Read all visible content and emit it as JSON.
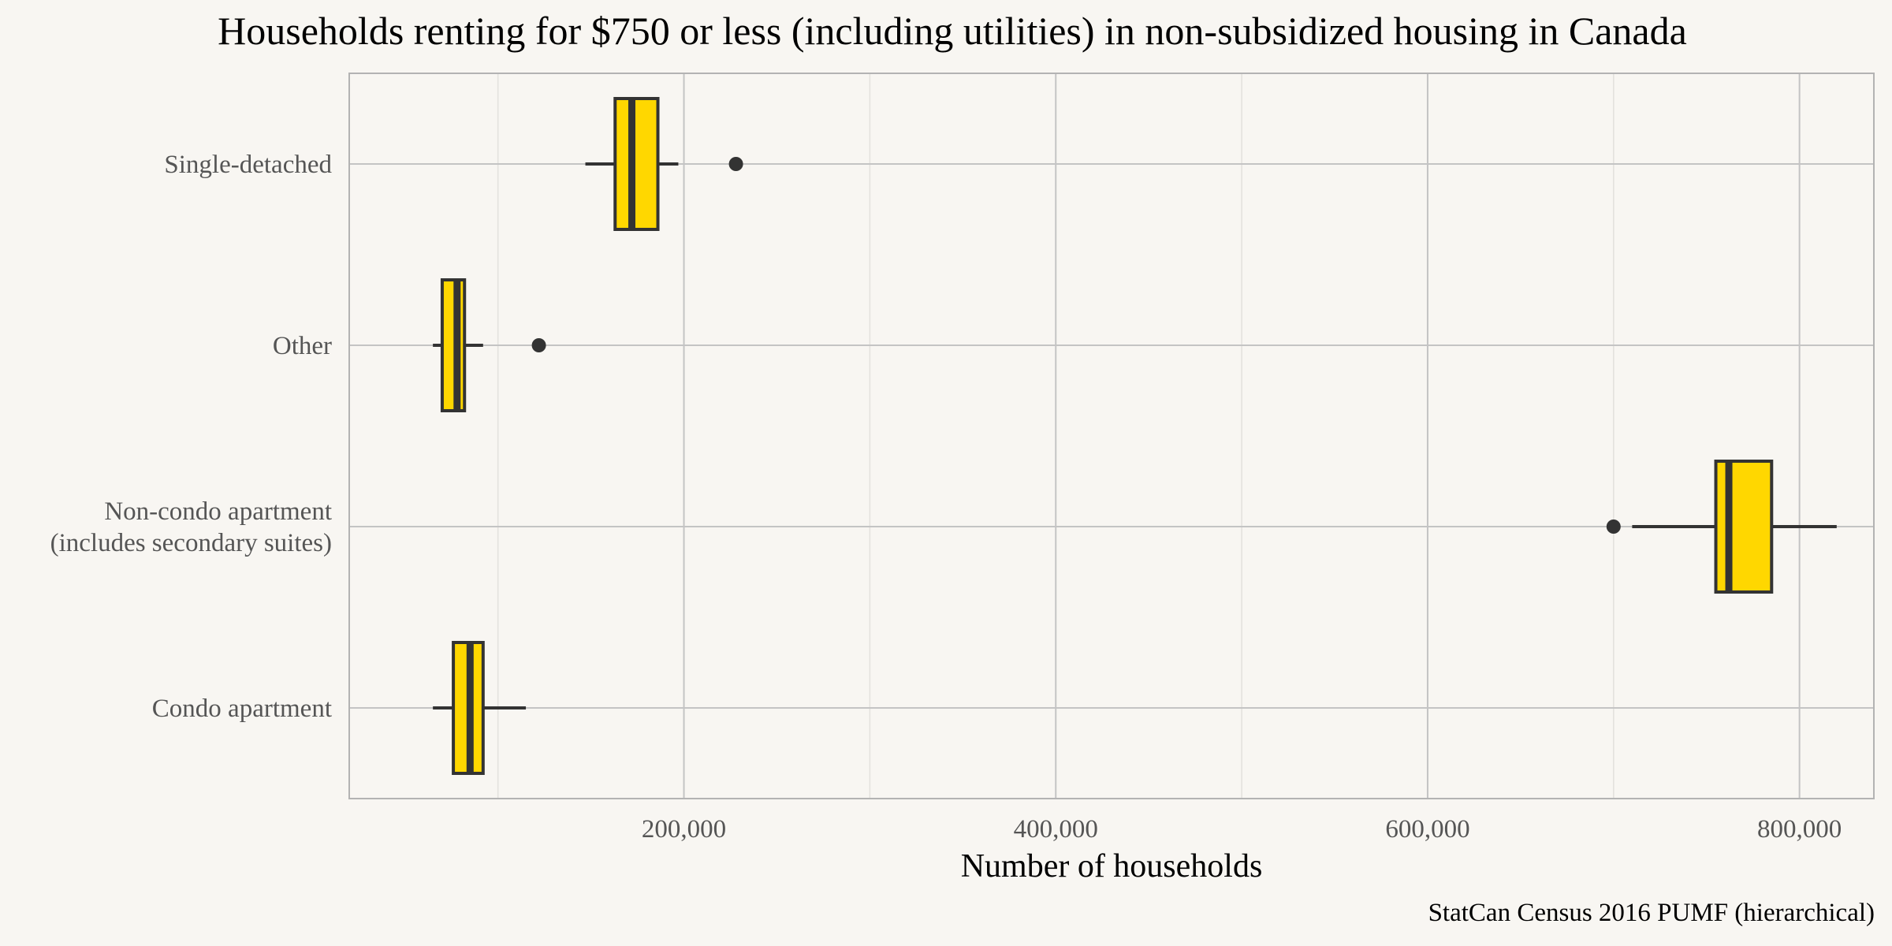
{
  "chart_data": {
    "type": "box",
    "orientation": "horizontal",
    "title": "Households renting for $750 or less (including utilities) in non-subsidized housing in Canada",
    "xlabel": "Number of households",
    "ylabel": "",
    "caption": "StatCan Census 2016 PUMF (hierarchical)",
    "xlim": [
      20000,
      840000
    ],
    "x_ticks": [
      200000,
      400000,
      600000,
      800000
    ],
    "x_tick_labels": [
      "200,000",
      "400,000",
      "600,000",
      "800,000"
    ],
    "grid": true,
    "fill_color": "#ffd700",
    "outline_color": "#333333",
    "categories": [
      {
        "label": [
          "Single-detached"
        ],
        "whisker_low": 147000,
        "q1": 163000,
        "median": 172000,
        "q3": 186000,
        "whisker_high": 197000,
        "outliers": [
          228000
        ]
      },
      {
        "label": [
          "Other"
        ],
        "whisker_low": 65000,
        "q1": 70000,
        "median": 78000,
        "q3": 82000,
        "whisker_high": 92000,
        "outliers": [
          122000
        ]
      },
      {
        "label": [
          "Non-condo apartment",
          "(includes secondary suites)"
        ],
        "whisker_low": 710000,
        "q1": 755000,
        "median": 762000,
        "q3": 785000,
        "whisker_high": 820000,
        "outliers": [
          700000
        ]
      },
      {
        "label": [
          "Condo apartment"
        ],
        "whisker_low": 65000,
        "q1": 76000,
        "median": 85000,
        "q3": 92000,
        "whisker_high": 115000,
        "outliers": []
      }
    ]
  }
}
